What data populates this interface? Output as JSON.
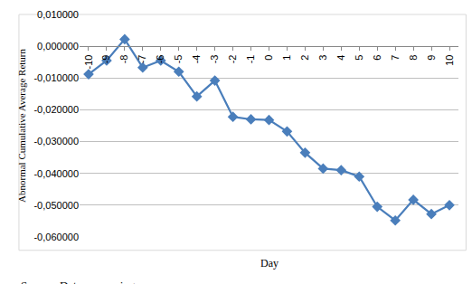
{
  "chart_data": {
    "type": "line",
    "x_label": "Day",
    "y_label": "Abnormal Cumulative Average Return",
    "source": "Source: Data processing",
    "categories": [
      "-10",
      "-9",
      "-8",
      "-7",
      "-6",
      "-5",
      "-4",
      "-3",
      "-2",
      "-1",
      "0",
      "1",
      "2",
      "3",
      "4",
      "5",
      "6",
      "7",
      "8",
      "9",
      "10"
    ],
    "values": [
      -0.0088,
      -0.0045,
      0.0022,
      -0.0067,
      -0.0045,
      -0.008,
      -0.0158,
      -0.0108,
      -0.0222,
      -0.023,
      -0.0232,
      -0.0268,
      -0.0335,
      -0.0385,
      -0.039,
      -0.041,
      -0.0505,
      -0.0548,
      -0.0483,
      -0.0528,
      -0.05
    ],
    "color": "#4a7ebb",
    "marker": "diamond",
    "ylim": [
      -0.06,
      0.01
    ],
    "yticks": [
      {
        "value": 0.01,
        "label": "0,010000"
      },
      {
        "value": 0,
        "label": "0,000000"
      },
      {
        "value": -0.01,
        "label": "-0,010000"
      },
      {
        "value": -0.02,
        "label": "-0,020000"
      },
      {
        "value": -0.03,
        "label": "-0,030000"
      },
      {
        "value": -0.04,
        "label": "-0,040000"
      },
      {
        "value": -0.05,
        "label": "-0,050000"
      },
      {
        "value": -0.06,
        "label": "-0,060000"
      }
    ],
    "grid": true
  }
}
